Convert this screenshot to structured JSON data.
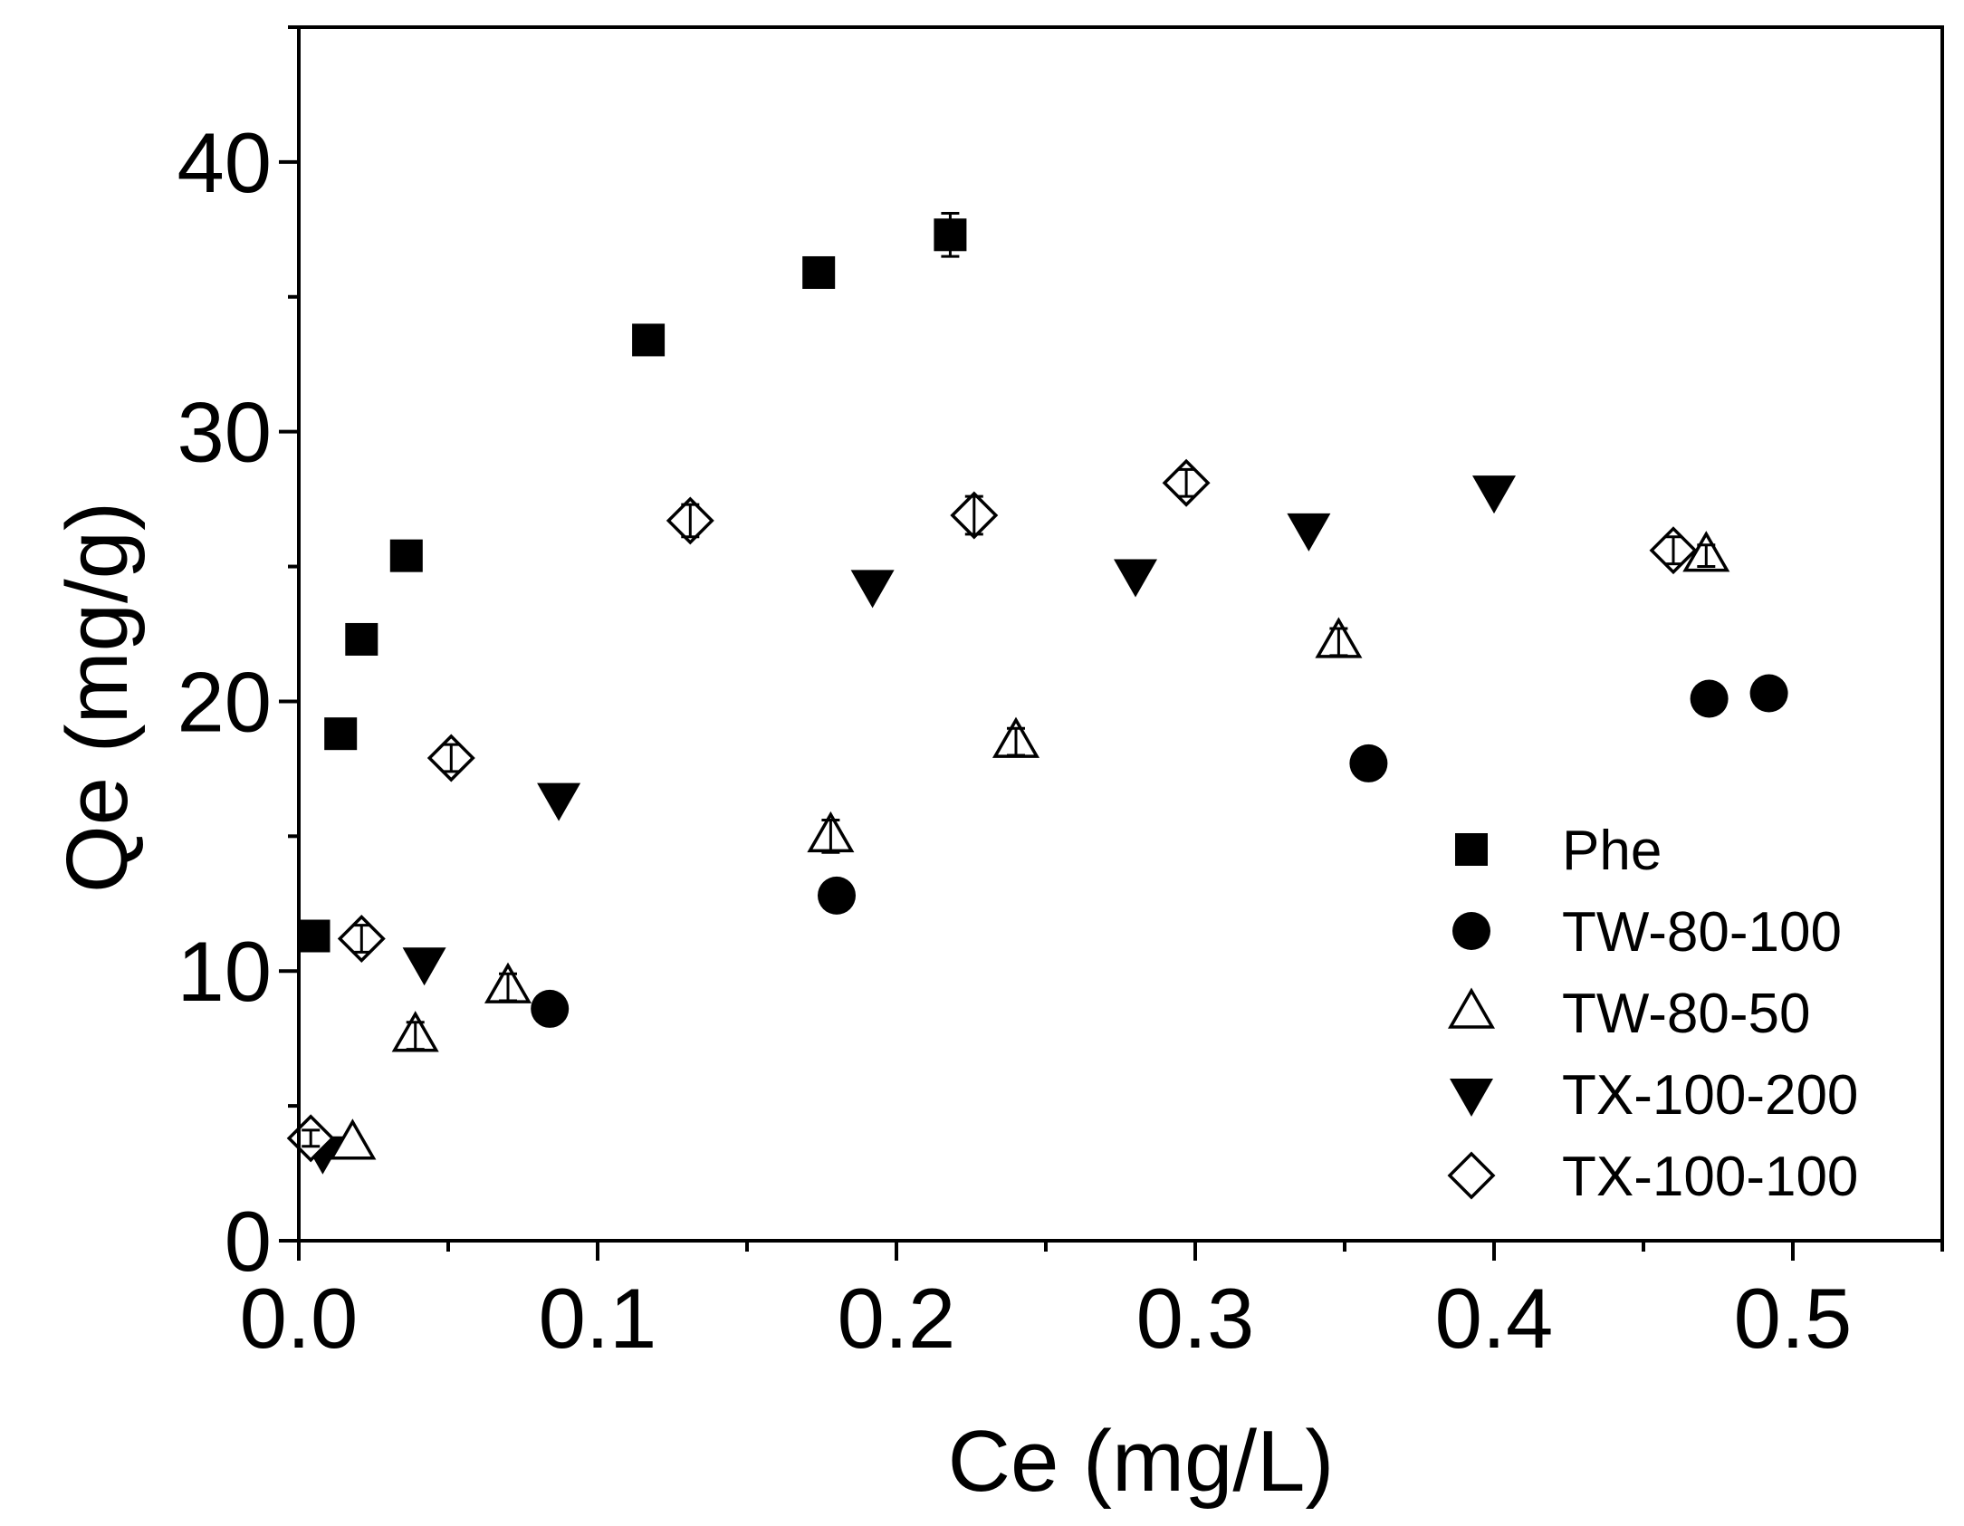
{
  "chart_data": {
    "type": "scatter",
    "title": "",
    "xlabel": "Ce (mg/L)",
    "ylabel": "Qe (mg/g)",
    "xlim": [
      0,
      0.55
    ],
    "ylim": [
      0,
      45
    ],
    "x_ticks": [
      "0.0",
      "0.1",
      "0.2",
      "0.3",
      "0.4",
      "0.5"
    ],
    "y_ticks": [
      "0",
      "10",
      "20",
      "30",
      "40"
    ],
    "grid": false,
    "legend_position": "bottom-right",
    "series": [
      {
        "name": "Phe",
        "marker": "square-filled",
        "x": [
          0.005,
          0.014,
          0.021,
          0.036,
          0.117,
          0.174,
          0.218
        ],
        "y": [
          11.3,
          18.8,
          22.3,
          25.4,
          33.4,
          35.9,
          37.3
        ],
        "error": [
          0,
          0,
          0,
          0,
          0,
          0,
          0.8
        ]
      },
      {
        "name": "TW-80-100",
        "marker": "circle-filled",
        "x": [
          0.084,
          0.18,
          0.358,
          0.472,
          0.492
        ],
        "y": [
          8.6,
          12.8,
          17.7,
          20.1,
          20.3
        ],
        "error": [
          0,
          0,
          0,
          0,
          0
        ]
      },
      {
        "name": "TW-80-50",
        "marker": "triangle-up-open",
        "x": [
          0.018,
          0.039,
          0.07,
          0.178,
          0.24,
          0.348,
          0.471
        ],
        "y": [
          3.6,
          7.6,
          9.4,
          15.0,
          18.5,
          22.2,
          25.4
        ],
        "error": [
          0,
          0.5,
          0.5,
          0.6,
          0.5,
          0.5,
          0.4
        ]
      },
      {
        "name": "TX-100-200",
        "marker": "triangle-down-filled",
        "x": [
          0.008,
          0.042,
          0.087,
          0.192,
          0.28,
          0.338,
          0.4
        ],
        "y": [
          3.3,
          10.3,
          16.4,
          24.3,
          24.7,
          26.4,
          27.8
        ],
        "error": [
          0,
          0,
          0,
          0,
          0,
          0,
          0
        ]
      },
      {
        "name": "TX-100-100",
        "marker": "diamond-open",
        "x": [
          0.004,
          0.021,
          0.051,
          0.131,
          0.226,
          0.297,
          0.46
        ],
        "y": [
          3.8,
          11.2,
          17.9,
          26.7,
          26.9,
          28.1,
          25.6
        ],
        "error": [
          0.3,
          0.5,
          0.5,
          0.6,
          0.7,
          0.5,
          0.5
        ]
      }
    ]
  }
}
